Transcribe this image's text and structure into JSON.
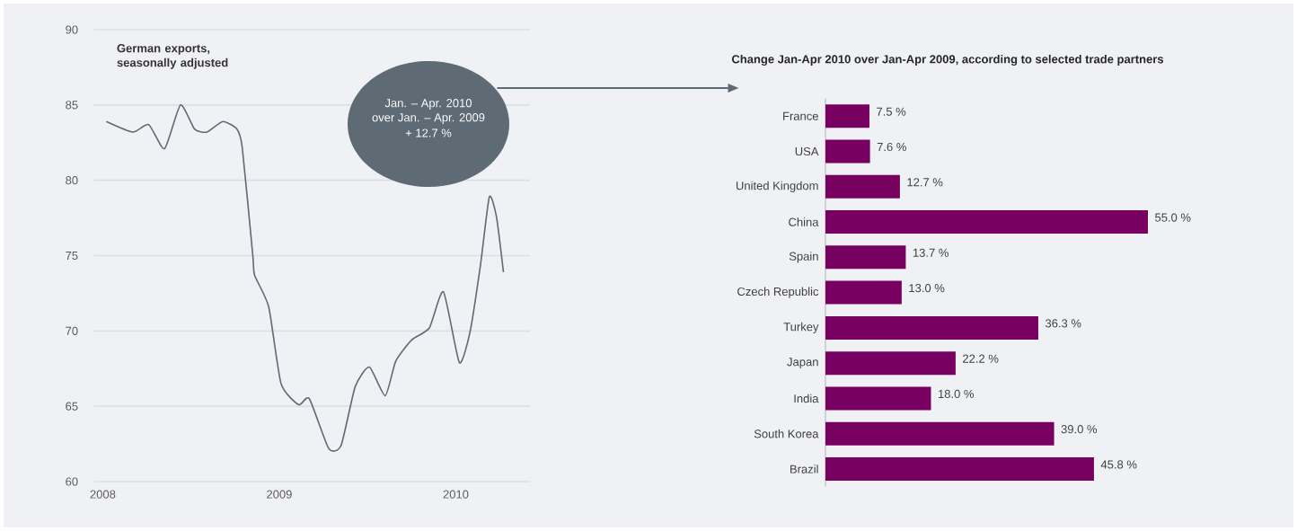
{
  "chart_data": [
    {
      "type": "line",
      "title": "German exports, seasonally adjusted",
      "color": "#5e6a74",
      "x": [
        2008.02,
        2008.17,
        2008.26,
        2008.35,
        2008.44,
        2008.52,
        2008.59,
        2008.68,
        2008.76,
        2008.79,
        2008.85,
        2008.86,
        2008.94,
        2009.01,
        2009.11,
        2009.17,
        2009.28,
        2009.35,
        2009.43,
        2009.51,
        2009.6,
        2009.66,
        2009.75,
        2009.85,
        2009.93,
        2010.02,
        2010.08,
        2010.14,
        2010.19,
        2010.23,
        2010.27
      ],
      "values": [
        83.9,
        83.2,
        83.7,
        82.1,
        85.0,
        83.4,
        83.2,
        83.9,
        83.4,
        82.2,
        75.0,
        73.7,
        71.6,
        66.5,
        65.1,
        65.5,
        62.2,
        62.4,
        66.3,
        67.6,
        65.7,
        68.0,
        69.4,
        70.2,
        72.6,
        67.9,
        69.9,
        74.4,
        78.9,
        77.6,
        73.9
      ],
      "xlim": [
        2007.95,
        2010.42
      ],
      "ylim": [
        60,
        90
      ],
      "xticks": [
        2008,
        2009,
        2010
      ],
      "yticks": [
        60,
        65,
        70,
        75,
        80,
        85,
        90
      ],
      "grid": "y",
      "annotations": [
        "Jan. – Apr. 2010",
        "over Jan. – Apr. 2009",
        "+ 12.7 %"
      ]
    },
    {
      "type": "bar",
      "orientation": "horizontal",
      "title": "Change Jan-Apr 2010 over Jan-Apr 2009, according to selected trade partners",
      "color": "#780060",
      "categories": [
        "France",
        "USA",
        "United Kingdom",
        "China",
        "Spain",
        "Czech Republic",
        "Turkey",
        "Japan",
        "India",
        "South Korea",
        "Brazil"
      ],
      "values": [
        7.5,
        7.6,
        12.7,
        55.0,
        13.7,
        13.0,
        36.3,
        22.2,
        18.0,
        39.0,
        45.8
      ],
      "value_labels": [
        "7.5 %",
        "7.6 %",
        "12.7 %",
        "55.0 %",
        "13.7 %",
        "13.0 %",
        "36.3 %",
        "22.2 %",
        "18.0 %",
        "39.0 %",
        "45.8 %"
      ]
    }
  ]
}
